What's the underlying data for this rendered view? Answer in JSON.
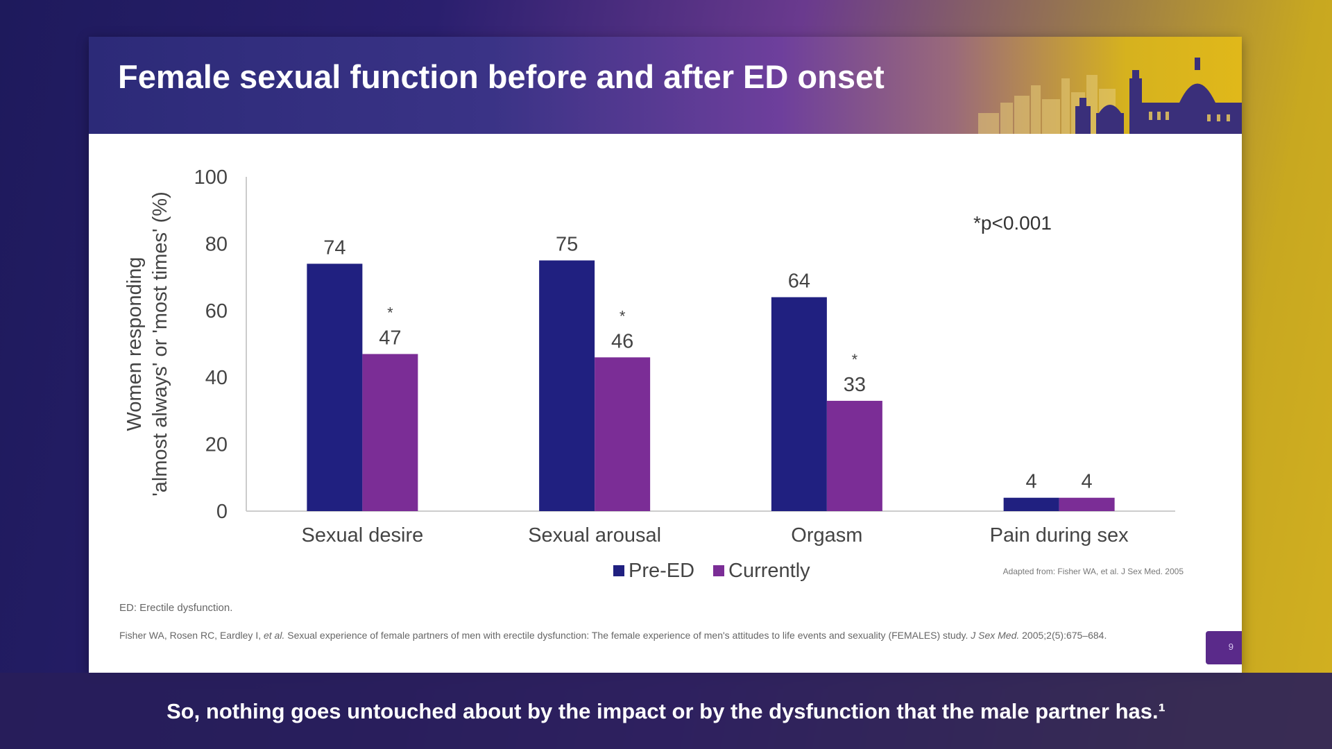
{
  "slide": {
    "title": "Female sexual function before and after ED onset",
    "footnote_abbrev": "ED: Erectile dysfunction.",
    "reference_authors": "Fisher WA, Rosen RC, Eardley I, ",
    "reference_etal": "et al.",
    "reference_title": " Sexual experience of female partners of men with erectile dysfunction: The female experience of men's attitudes to life events and sexuality (FEMALES) study. ",
    "reference_journal": "J Sex Med.",
    "reference_details": " 2005;2(5):675–684.",
    "page_number": "9"
  },
  "subtitle": {
    "text": "So, nothing goes untouched about by the impact or by the dysfunction that the male partner has.¹"
  },
  "chart_data": {
    "type": "bar",
    "categories": [
      "Sexual desire",
      "Sexual arousal",
      "Orgasm",
      "Pain during sex"
    ],
    "series": [
      {
        "name": "Pre-ED",
        "values": [
          74,
          75,
          64,
          4
        ],
        "color": "#202080"
      },
      {
        "name": "Currently",
        "values": [
          47,
          46,
          33,
          4
        ],
        "color": "#7b2d96"
      }
    ],
    "significance": [
      "*",
      "*",
      "*",
      ""
    ],
    "ylabel_line1": "Women responding",
    "ylabel_line2": "'almost always' or 'most times' (%)",
    "yticks": [
      0,
      20,
      40,
      60,
      80,
      100
    ],
    "ylim": [
      0,
      100
    ],
    "grid": false,
    "legend_position": "bottom",
    "annotation": "*p<0.001",
    "source": "Adapted from: Fisher WA, et al. J Sex Med. 2005"
  }
}
